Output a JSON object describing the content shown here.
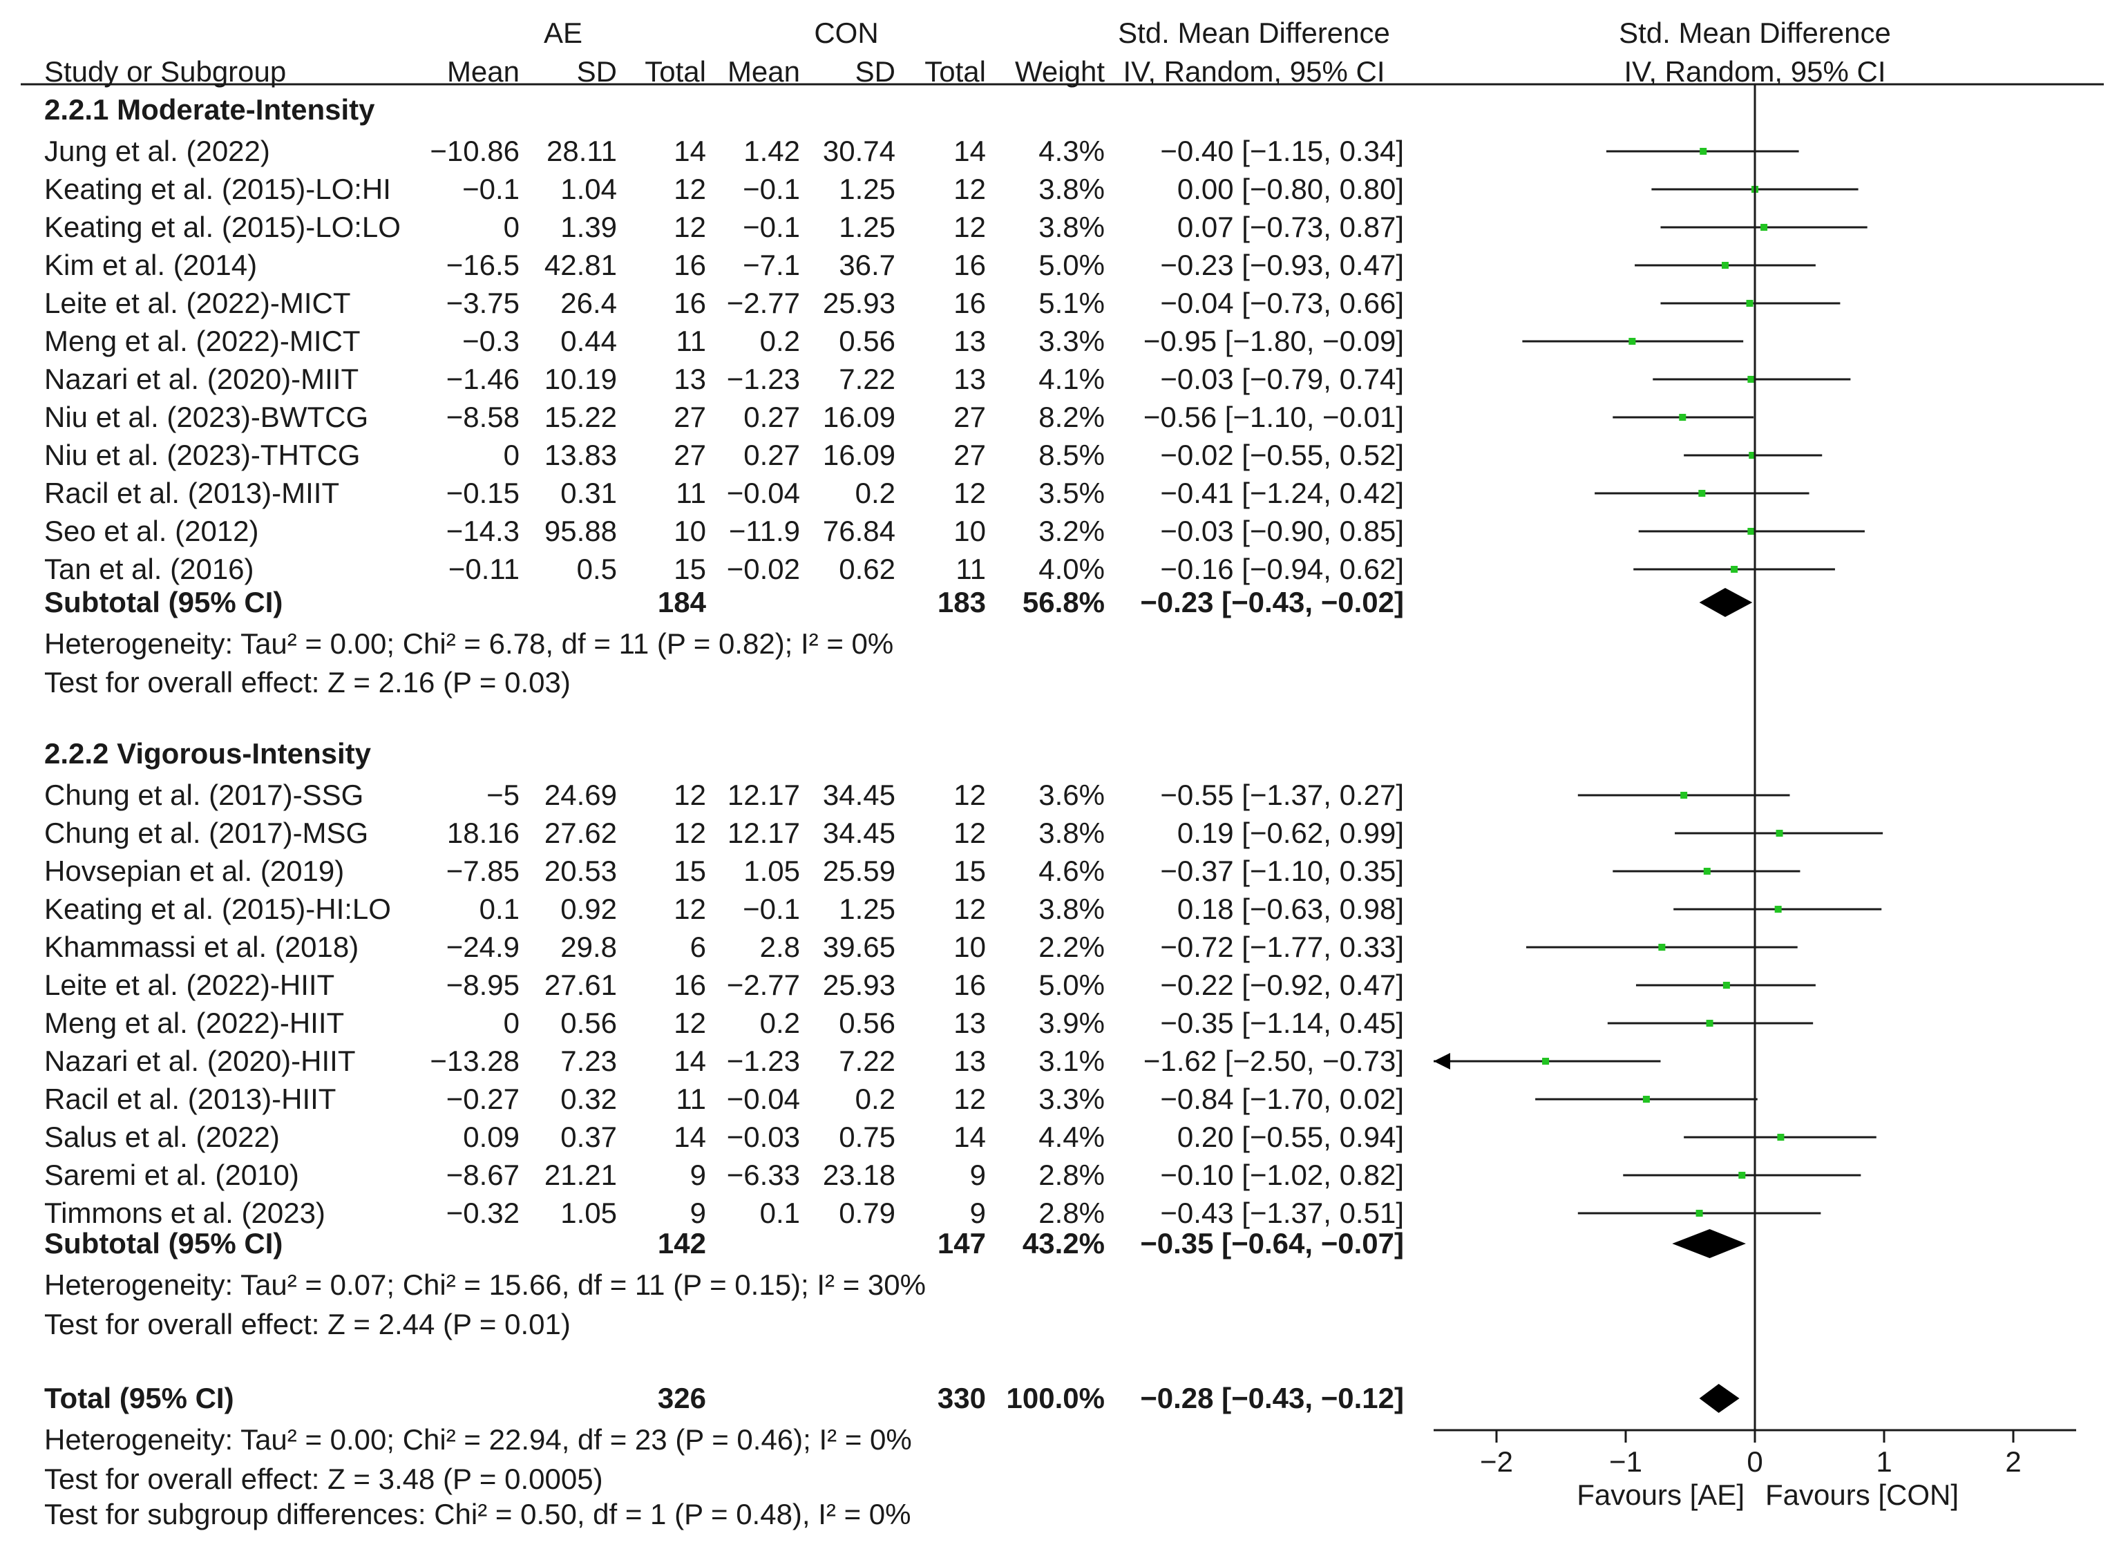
{
  "header": {
    "ae_group": "AE",
    "con_group": "CON",
    "smd_title": "Std. Mean Difference",
    "plot_title": "Std. Mean Difference",
    "col_study": "Study or Subgroup",
    "col_mean_ae": "Mean",
    "col_sd_ae": "SD",
    "col_total_ae": "Total",
    "col_mean_con": "Mean",
    "col_sd_con": "SD",
    "col_total_con": "Total",
    "col_weight": "Weight",
    "col_method": "IV, Random, 95% CI",
    "plot_method": "IV, Random, 95% CI"
  },
  "chart_data": {
    "type": "forest",
    "xlim": [
      -2.5,
      2.5
    ],
    "x_ticks": [
      "−2",
      "−1",
      "0",
      "1",
      "2"
    ],
    "x_tick_values": [
      -2,
      -1,
      0,
      1,
      2
    ],
    "xlabel_left": "Favours [AE]",
    "xlabel_right": "Favours [CON]",
    "marker_color": "#22c322",
    "subgroups": [
      {
        "title": "2.2.1 Moderate-Intensity",
        "studies": [
          {
            "name": "Jung et al. (2022)",
            "ae_mean": "−10.86",
            "ae_sd": "28.11",
            "ae_n": "14",
            "con_mean": "1.42",
            "con_sd": "30.74",
            "con_n": "14",
            "weight": "4.3%",
            "ci_text": "−0.40 [−1.15, 0.34]",
            "est": -0.4,
            "lo": -1.15,
            "hi": 0.34
          },
          {
            "name": "Keating et al. (2015)-LO:HI",
            "ae_mean": "−0.1",
            "ae_sd": "1.04",
            "ae_n": "12",
            "con_mean": "−0.1",
            "con_sd": "1.25",
            "con_n": "12",
            "weight": "3.8%",
            "ci_text": "0.00 [−0.80, 0.80]",
            "est": 0.0,
            "lo": -0.8,
            "hi": 0.8
          },
          {
            "name": "Keating et al. (2015)-LO:LO",
            "ae_mean": "0",
            "ae_sd": "1.39",
            "ae_n": "12",
            "con_mean": "−0.1",
            "con_sd": "1.25",
            "con_n": "12",
            "weight": "3.8%",
            "ci_text": "0.07 [−0.73, 0.87]",
            "est": 0.07,
            "lo": -0.73,
            "hi": 0.87
          },
          {
            "name": "Kim et al. (2014)",
            "ae_mean": "−16.5",
            "ae_sd": "42.81",
            "ae_n": "16",
            "con_mean": "−7.1",
            "con_sd": "36.7",
            "con_n": "16",
            "weight": "5.0%",
            "ci_text": "−0.23 [−0.93, 0.47]",
            "est": -0.23,
            "lo": -0.93,
            "hi": 0.47
          },
          {
            "name": "Leite et al. (2022)-MICT",
            "ae_mean": "−3.75",
            "ae_sd": "26.4",
            "ae_n": "16",
            "con_mean": "−2.77",
            "con_sd": "25.93",
            "con_n": "16",
            "weight": "5.1%",
            "ci_text": "−0.04 [−0.73, 0.66]",
            "est": -0.04,
            "lo": -0.73,
            "hi": 0.66
          },
          {
            "name": "Meng et al. (2022)-MICT",
            "ae_mean": "−0.3",
            "ae_sd": "0.44",
            "ae_n": "11",
            "con_mean": "0.2",
            "con_sd": "0.56",
            "con_n": "13",
            "weight": "3.3%",
            "ci_text": "−0.95 [−1.80, −0.09]",
            "est": -0.95,
            "lo": -1.8,
            "hi": -0.09
          },
          {
            "name": "Nazari et al. (2020)-MIIT",
            "ae_mean": "−1.46",
            "ae_sd": "10.19",
            "ae_n": "13",
            "con_mean": "−1.23",
            "con_sd": "7.22",
            "con_n": "13",
            "weight": "4.1%",
            "ci_text": "−0.03 [−0.79, 0.74]",
            "est": -0.03,
            "lo": -0.79,
            "hi": 0.74
          },
          {
            "name": "Niu et al. (2023)-BWTCG",
            "ae_mean": "−8.58",
            "ae_sd": "15.22",
            "ae_n": "27",
            "con_mean": "0.27",
            "con_sd": "16.09",
            "con_n": "27",
            "weight": "8.2%",
            "ci_text": "−0.56 [−1.10, −0.01]",
            "est": -0.56,
            "lo": -1.1,
            "hi": -0.01
          },
          {
            "name": "Niu et al. (2023)-THTCG",
            "ae_mean": "0",
            "ae_sd": "13.83",
            "ae_n": "27",
            "con_mean": "0.27",
            "con_sd": "16.09",
            "con_n": "27",
            "weight": "8.5%",
            "ci_text": "−0.02 [−0.55, 0.52]",
            "est": -0.02,
            "lo": -0.55,
            "hi": 0.52
          },
          {
            "name": "Racil et al. (2013)-MIIT",
            "ae_mean": "−0.15",
            "ae_sd": "0.31",
            "ae_n": "11",
            "con_mean": "−0.04",
            "con_sd": "0.2",
            "con_n": "12",
            "weight": "3.5%",
            "ci_text": "−0.41 [−1.24, 0.42]",
            "est": -0.41,
            "lo": -1.24,
            "hi": 0.42
          },
          {
            "name": "Seo et al. (2012)",
            "ae_mean": "−14.3",
            "ae_sd": "95.88",
            "ae_n": "10",
            "con_mean": "−11.9",
            "con_sd": "76.84",
            "con_n": "10",
            "weight": "3.2%",
            "ci_text": "−0.03 [−0.90, 0.85]",
            "est": -0.03,
            "lo": -0.9,
            "hi": 0.85
          },
          {
            "name": "Tan et al. (2016)",
            "ae_mean": "−0.11",
            "ae_sd": "0.5",
            "ae_n": "15",
            "con_mean": "−0.02",
            "con_sd": "0.62",
            "con_n": "11",
            "weight": "4.0%",
            "ci_text": "−0.16 [−0.94, 0.62]",
            "est": -0.16,
            "lo": -0.94,
            "hi": 0.62
          }
        ],
        "subtotal": {
          "label": "Subtotal (95% CI)",
          "ae_n": "184",
          "con_n": "183",
          "weight": "56.8%",
          "ci_text": "−0.23 [−0.43, −0.02]",
          "est": -0.23,
          "lo": -0.43,
          "hi": -0.02
        },
        "heterogeneity": "Heterogeneity: Tau² = 0.00; Chi² = 6.78, df = 11 (P = 0.82); I² = 0%",
        "overall_test": "Test for overall effect: Z = 2.16 (P = 0.03)"
      },
      {
        "title": "2.2.2 Vigorous-Intensity",
        "studies": [
          {
            "name": "Chung et al. (2017)-SSG",
            "ae_mean": "−5",
            "ae_sd": "24.69",
            "ae_n": "12",
            "con_mean": "12.17",
            "con_sd": "34.45",
            "con_n": "12",
            "weight": "3.6%",
            "ci_text": "−0.55 [−1.37, 0.27]",
            "est": -0.55,
            "lo": -1.37,
            "hi": 0.27
          },
          {
            "name": "Chung et al. (2017)-MSG",
            "ae_mean": "18.16",
            "ae_sd": "27.62",
            "ae_n": "12",
            "con_mean": "12.17",
            "con_sd": "34.45",
            "con_n": "12",
            "weight": "3.8%",
            "ci_text": "0.19 [−0.62, 0.99]",
            "est": 0.19,
            "lo": -0.62,
            "hi": 0.99
          },
          {
            "name": "Hovsepian et al. (2019)",
            "ae_mean": "−7.85",
            "ae_sd": "20.53",
            "ae_n": "15",
            "con_mean": "1.05",
            "con_sd": "25.59",
            "con_n": "15",
            "weight": "4.6%",
            "ci_text": "−0.37 [−1.10, 0.35]",
            "est": -0.37,
            "lo": -1.1,
            "hi": 0.35
          },
          {
            "name": "Keating et al. (2015)-HI:LO",
            "ae_mean": "0.1",
            "ae_sd": "0.92",
            "ae_n": "12",
            "con_mean": "−0.1",
            "con_sd": "1.25",
            "con_n": "12",
            "weight": "3.8%",
            "ci_text": "0.18 [−0.63, 0.98]",
            "est": 0.18,
            "lo": -0.63,
            "hi": 0.98
          },
          {
            "name": "Khammassi et al. (2018)",
            "ae_mean": "−24.9",
            "ae_sd": "29.8",
            "ae_n": "6",
            "con_mean": "2.8",
            "con_sd": "39.65",
            "con_n": "10",
            "weight": "2.2%",
            "ci_text": "−0.72 [−1.77, 0.33]",
            "est": -0.72,
            "lo": -1.77,
            "hi": 0.33
          },
          {
            "name": "Leite et al. (2022)-HIIT",
            "ae_mean": "−8.95",
            "ae_sd": "27.61",
            "ae_n": "16",
            "con_mean": "−2.77",
            "con_sd": "25.93",
            "con_n": "16",
            "weight": "5.0%",
            "ci_text": "−0.22 [−0.92, 0.47]",
            "est": -0.22,
            "lo": -0.92,
            "hi": 0.47
          },
          {
            "name": "Meng et al. (2022)-HIIT",
            "ae_mean": "0",
            "ae_sd": "0.56",
            "ae_n": "12",
            "con_mean": "0.2",
            "con_sd": "0.56",
            "con_n": "13",
            "weight": "3.9%",
            "ci_text": "−0.35 [−1.14, 0.45]",
            "est": -0.35,
            "lo": -1.14,
            "hi": 0.45
          },
          {
            "name": "Nazari et al. (2020)-HIIT",
            "ae_mean": "−13.28",
            "ae_sd": "7.23",
            "ae_n": "14",
            "con_mean": "−1.23",
            "con_sd": "7.22",
            "con_n": "13",
            "weight": "3.1%",
            "ci_text": "−1.62 [−2.50, −0.73]",
            "est": -1.62,
            "lo": -2.5,
            "hi": -0.73
          },
          {
            "name": "Racil et al. (2013)-HIIT",
            "ae_mean": "−0.27",
            "ae_sd": "0.32",
            "ae_n": "11",
            "con_mean": "−0.04",
            "con_sd": "0.2",
            "con_n": "12",
            "weight": "3.3%",
            "ci_text": "−0.84 [−1.70, 0.02]",
            "est": -0.84,
            "lo": -1.7,
            "hi": 0.02
          },
          {
            "name": "Salus et al. (2022)",
            "ae_mean": "0.09",
            "ae_sd": "0.37",
            "ae_n": "14",
            "con_mean": "−0.03",
            "con_sd": "0.75",
            "con_n": "14",
            "weight": "4.4%",
            "ci_text": "0.20 [−0.55, 0.94]",
            "est": 0.2,
            "lo": -0.55,
            "hi": 0.94
          },
          {
            "name": "Saremi et al. (2010)",
            "ae_mean": "−8.67",
            "ae_sd": "21.21",
            "ae_n": "9",
            "con_mean": "−6.33",
            "con_sd": "23.18",
            "con_n": "9",
            "weight": "2.8%",
            "ci_text": "−0.10 [−1.02, 0.82]",
            "est": -0.1,
            "lo": -1.02,
            "hi": 0.82
          },
          {
            "name": "Timmons et al. (2023)",
            "ae_mean": "−0.32",
            "ae_sd": "1.05",
            "ae_n": "9",
            "con_mean": "0.1",
            "con_sd": "0.79",
            "con_n": "9",
            "weight": "2.8%",
            "ci_text": "−0.43 [−1.37, 0.51]",
            "est": -0.43,
            "lo": -1.37,
            "hi": 0.51
          }
        ],
        "subtotal": {
          "label": "Subtotal (95% CI)",
          "ae_n": "142",
          "con_n": "147",
          "weight": "43.2%",
          "ci_text": "−0.35 [−0.64, −0.07]",
          "est": -0.35,
          "lo": -0.64,
          "hi": -0.07
        },
        "heterogeneity": "Heterogeneity: Tau² = 0.07; Chi² = 15.66, df = 11 (P = 0.15); I² = 30%",
        "overall_test": "Test for overall effect: Z = 2.44 (P = 0.01)"
      }
    ],
    "total": {
      "label": "Total (95% CI)",
      "ae_n": "326",
      "con_n": "330",
      "weight": "100.0%",
      "ci_text": "−0.28 [−0.43, −0.12]",
      "est": -0.28,
      "lo": -0.43,
      "hi": -0.12
    },
    "total_heterogeneity": "Heterogeneity: Tau² = 0.00; Chi² = 22.94, df = 23 (P = 0.46); I² = 0%",
    "total_overall_test": "Test for overall effect: Z = 3.48 (P = 0.0005)",
    "subgroup_test": "Test for subgroup differences: Chi² = 0.50, df = 1 (P = 0.48), I² = 0%"
  }
}
